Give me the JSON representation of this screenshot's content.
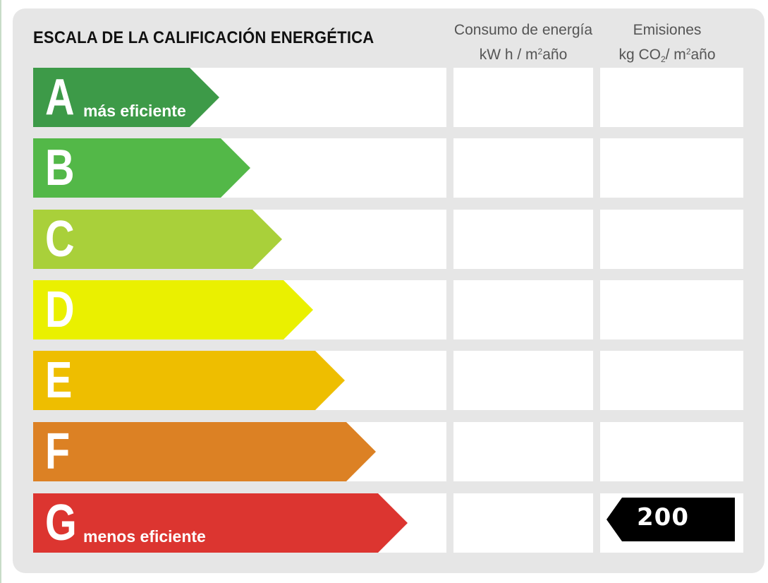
{
  "title": "ESCALA DE LA CALIFICACIÓN ENERGÉTICA",
  "columns": {
    "energy": {
      "line1": "Consumo de energía",
      "line2_pre": "kW h / m",
      "line2_sup": "2",
      "line2_post": "año"
    },
    "emissions": {
      "line1": "Emisiones",
      "line2_pre": "kg CO",
      "line2_sub": "2",
      "line2_mid": "/ m",
      "line2_sup": "2",
      "line2_post": "año"
    }
  },
  "classes": [
    {
      "letter": "A",
      "label": "más eficiente",
      "color": "#3d9a48"
    },
    {
      "letter": "B",
      "label": "",
      "color": "#53b848"
    },
    {
      "letter": "C",
      "label": "",
      "color": "#a9d03a"
    },
    {
      "letter": "D",
      "label": "",
      "color": "#eaf000"
    },
    {
      "letter": "E",
      "label": "",
      "color": "#eebe00"
    },
    {
      "letter": "F",
      "label": "",
      "color": "#dc8124"
    },
    {
      "letter": "G",
      "label": "menos eficiente",
      "color": "#dc3530"
    }
  ],
  "rating": {
    "class": "G",
    "column": "emissions",
    "value": "200",
    "color": "#000000"
  }
}
